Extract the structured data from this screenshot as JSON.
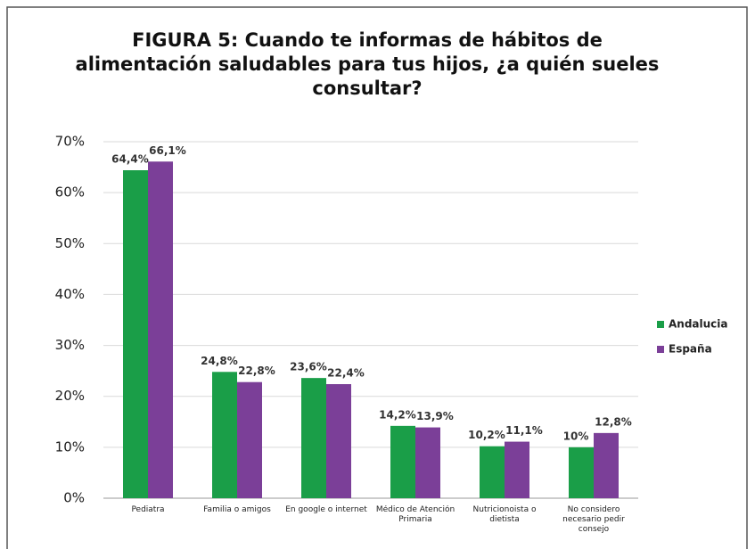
{
  "chart_data": {
    "type": "bar",
    "title_lines": [
      "FIGURA 5: Cuando te informas de hábitos de",
      "alimentación saludables para tus hijos, ¿a quién sueles",
      "consultar?"
    ],
    "categories": [
      "Pediatra",
      "Familia o amigos",
      "En google o internet",
      "Médico de Atención Primaria",
      "Nutricionoista o dietista",
      "No considero necesario pedir consejo"
    ],
    "series": [
      {
        "name": "Andalucia",
        "color": "#1a9e48",
        "values": [
          64.4,
          24.8,
          23.6,
          14.2,
          10.2,
          10
        ],
        "value_labels": [
          "64,4%",
          "24,8%",
          "23,6%",
          "14,2%",
          "10,2%",
          "10%"
        ]
      },
      {
        "name": "España",
        "color": "#7b3f98",
        "values": [
          66.1,
          22.8,
          22.4,
          13.9,
          11.1,
          12.8
        ],
        "value_labels": [
          "66,1%",
          "22,8%",
          "22,4%",
          "13,9%",
          "11,1%",
          "12,8%"
        ]
      }
    ],
    "ylim": [
      0,
      70
    ],
    "yticks": [
      {
        "value": 0,
        "label": "0%"
      },
      {
        "value": 10,
        "label": "10%"
      },
      {
        "value": 20,
        "label": "20%"
      },
      {
        "value": 30,
        "label": "30%"
      },
      {
        "value": 40,
        "label": "40%"
      },
      {
        "value": 50,
        "label": "50%"
      },
      {
        "value": 60,
        "label": "60%"
      },
      {
        "value": 70,
        "label": "70%"
      }
    ],
    "grid": true,
    "legend": "right"
  }
}
